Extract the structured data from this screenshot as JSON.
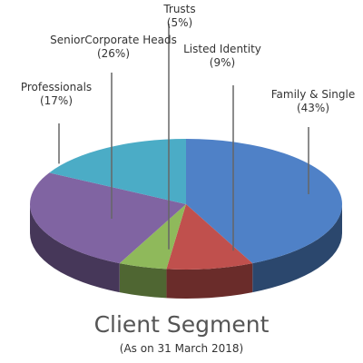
{
  "chart_data": {
    "type": "pie3d",
    "title": "Client Segment",
    "subtitle": "(As on 31 March 2018)",
    "categories": [
      "Family & Single",
      "Listed Identity",
      "Trusts",
      "SeniorCorporate Heads",
      "Professionals"
    ],
    "values": [
      43,
      9,
      5,
      26,
      17
    ],
    "value_labels": [
      "(43%)",
      "(9%)",
      "(5%)",
      "(26%)",
      "(17%)"
    ],
    "colors": [
      "#4f81c7",
      "#c0504d",
      "#8fb95b",
      "#8064a2",
      "#4bacc6"
    ]
  }
}
